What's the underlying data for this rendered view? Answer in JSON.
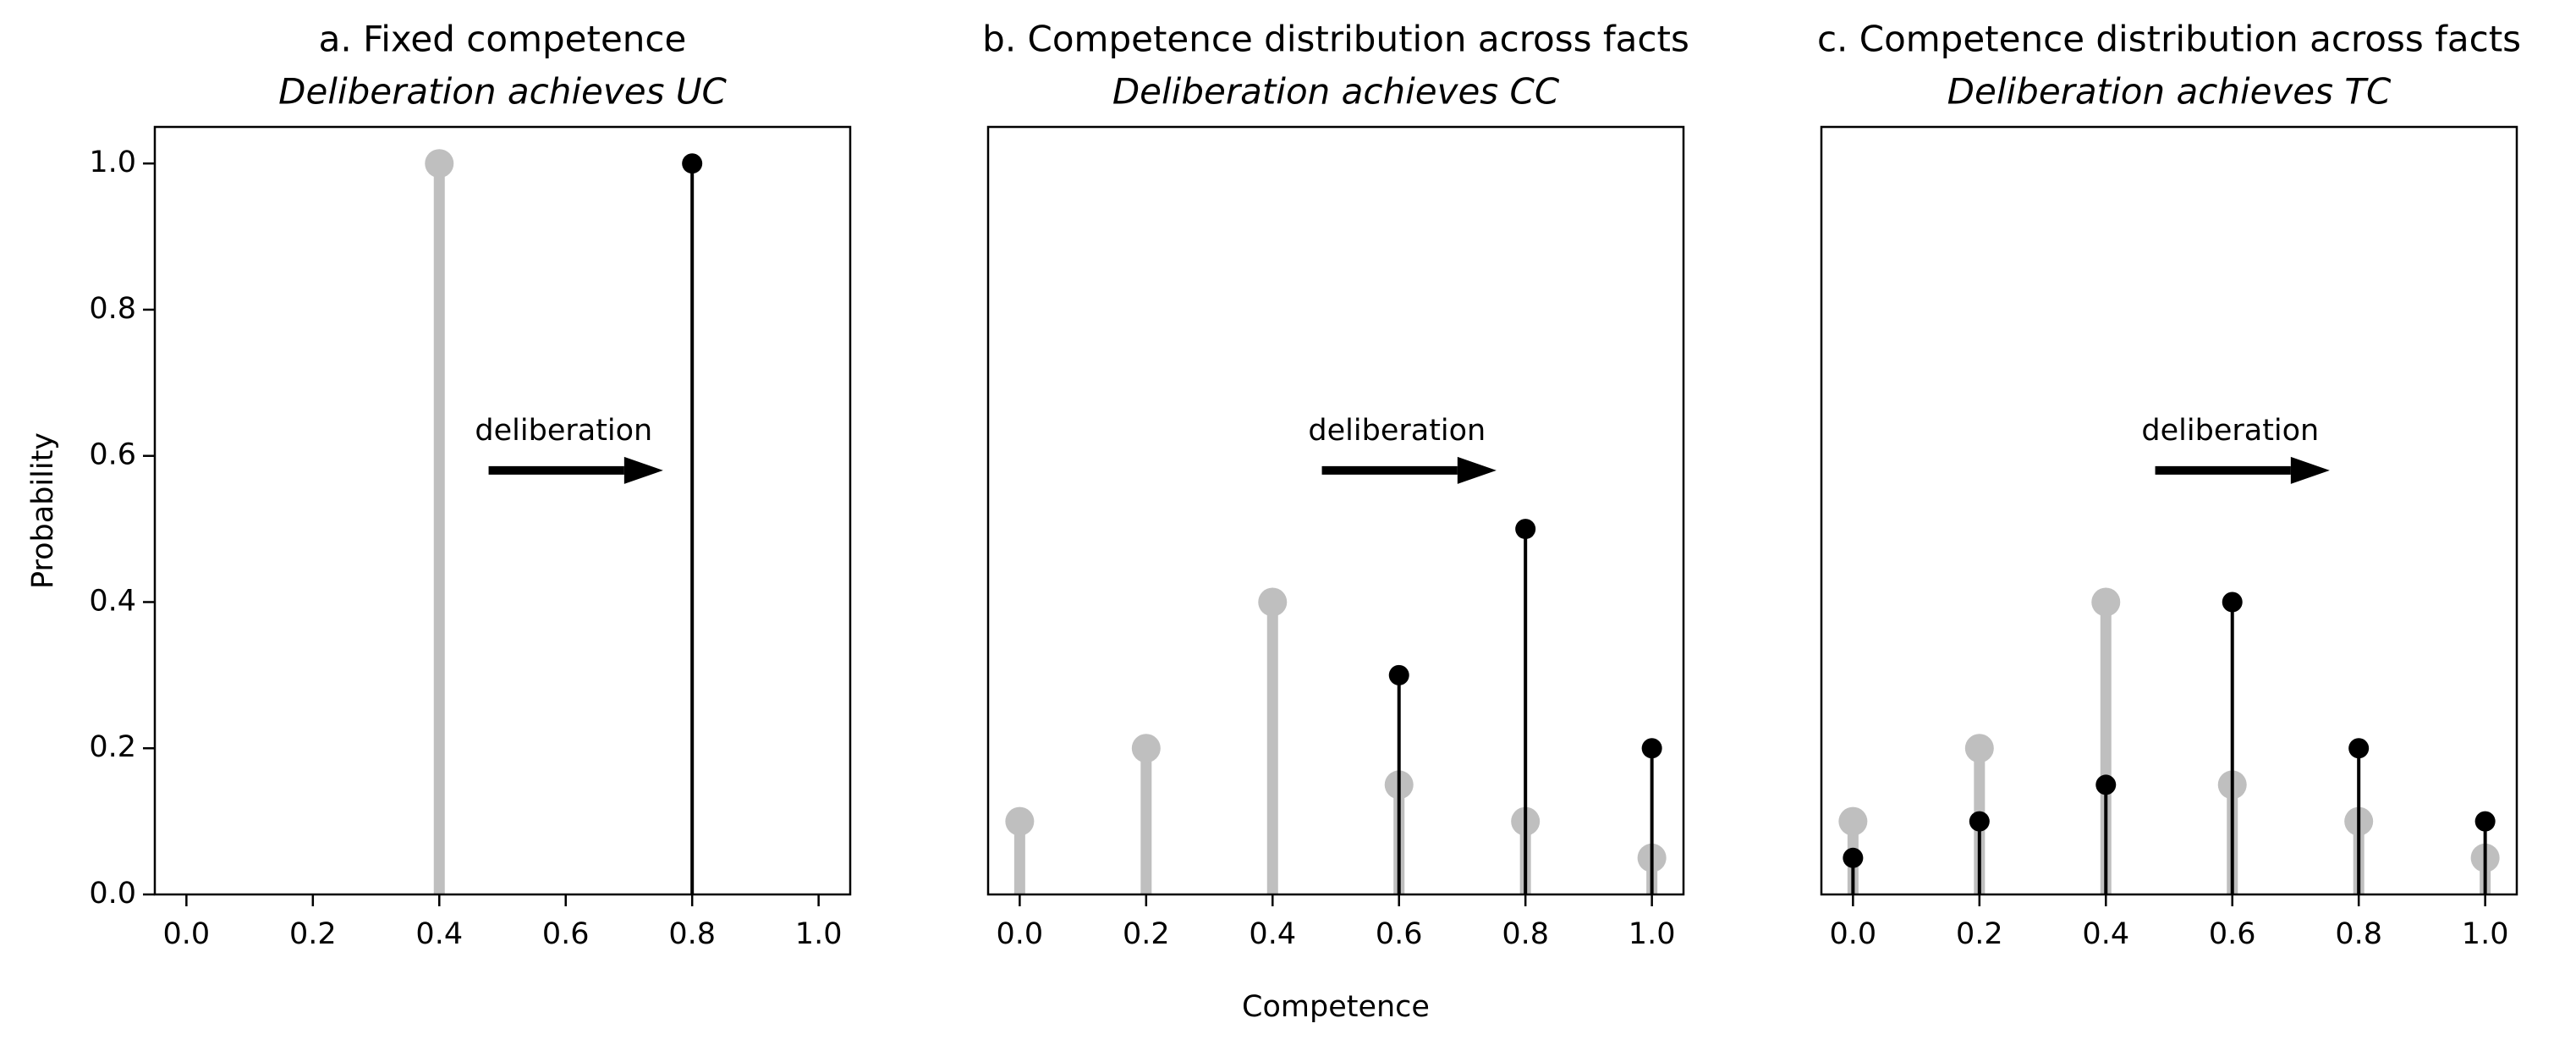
{
  "chart_data": [
    {
      "type": "stem",
      "title": "a. Fixed competence",
      "subtitle": "Deliberation achieves UC",
      "annotation": "deliberation",
      "ylabel": "Probability",
      "xlim": [
        -0.05,
        1.05
      ],
      "ylim": [
        0,
        1.05
      ],
      "xticks": [
        {
          "value": 0,
          "label": "0.0"
        },
        {
          "value": 0.2,
          "label": "0.2"
        },
        {
          "value": 0.4,
          "label": "0.4"
        },
        {
          "value": 0.6,
          "label": "0.6"
        },
        {
          "value": 0.8,
          "label": "0.8"
        },
        {
          "value": 1,
          "label": "1.0"
        }
      ],
      "yticks": [
        {
          "value": 0,
          "label": "0.0"
        },
        {
          "value": 0.2,
          "label": "0.2"
        },
        {
          "value": 0.4,
          "label": "0.4"
        },
        {
          "value": 0.6,
          "label": "0.6"
        },
        {
          "value": 0.8,
          "label": "0.8"
        },
        {
          "value": 1,
          "label": "1.0"
        }
      ],
      "series": [
        {
          "color": "#bfbfbf",
          "x": [
            0.4
          ],
          "values": [
            1.0
          ]
        },
        {
          "color": "#000000",
          "x": [
            0.8
          ],
          "values": [
            1.0
          ]
        }
      ]
    },
    {
      "type": "stem",
      "title": "b. Competence distribution across facts",
      "subtitle": "Deliberation achieves CC",
      "annotation": "deliberation",
      "xlabel": "Competence",
      "xlim": [
        -0.05,
        1.05
      ],
      "ylim": [
        0,
        1.05
      ],
      "xticks": [
        {
          "value": 0,
          "label": "0.0"
        },
        {
          "value": 0.2,
          "label": "0.2"
        },
        {
          "value": 0.4,
          "label": "0.4"
        },
        {
          "value": 0.6,
          "label": "0.6"
        },
        {
          "value": 0.8,
          "label": "0.8"
        },
        {
          "value": 1,
          "label": "1.0"
        }
      ],
      "series": [
        {
          "color": "#bfbfbf",
          "x": [
            0,
            0.2,
            0.4,
            0.6,
            0.8,
            1.0
          ],
          "values": [
            0.1,
            0.2,
            0.4,
            0.15,
            0.1,
            0.05
          ]
        },
        {
          "color": "#000000",
          "x": [
            0.6,
            0.8,
            1.0
          ],
          "values": [
            0.3,
            0.5,
            0.2
          ]
        }
      ]
    },
    {
      "type": "stem",
      "title": "c. Competence distribution across facts",
      "subtitle": "Deliberation achieves TC",
      "annotation": "deliberation",
      "xlim": [
        -0.05,
        1.05
      ],
      "ylim": [
        0,
        1.05
      ],
      "xticks": [
        {
          "value": 0,
          "label": "0.0"
        },
        {
          "value": 0.2,
          "label": "0.2"
        },
        {
          "value": 0.4,
          "label": "0.4"
        },
        {
          "value": 0.6,
          "label": "0.6"
        },
        {
          "value": 0.8,
          "label": "0.8"
        },
        {
          "value": 1,
          "label": "1.0"
        }
      ],
      "series": [
        {
          "color": "#bfbfbf",
          "x": [
            0,
            0.2,
            0.4,
            0.6,
            0.8,
            1.0
          ],
          "values": [
            0.1,
            0.2,
            0.4,
            0.15,
            0.1,
            0.05
          ]
        },
        {
          "color": "#000000",
          "x": [
            0,
            0.2,
            0.4,
            0.6,
            0.8,
            1.0
          ],
          "values": [
            0.05,
            0.1,
            0.15,
            0.4,
            0.2,
            0.1
          ]
        }
      ]
    }
  ]
}
